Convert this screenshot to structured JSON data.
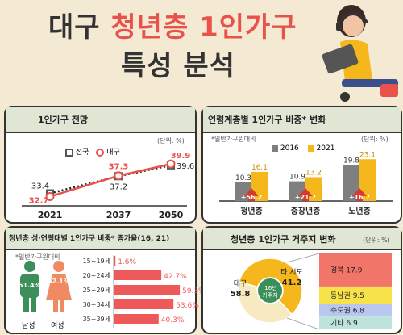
{
  "title": {
    "line1_a": "대구",
    "line1_b": "청년층 1인가구",
    "line2": "특성 분석"
  },
  "colors": {
    "accent": "#e8524a",
    "dark": "#333333",
    "gold": "#f5b71c",
    "gray": "#7f7f7f",
    "green": "#3c8f5a",
    "headBg": "#dfe6d3"
  },
  "panel1": {
    "title": "1인가구 전망",
    "unit": "(단위: %)",
    "legend": {
      "national": "전국",
      "daegu": "대구"
    }
  },
  "panel2": {
    "title": "연령계층별 1인가구 비중* 변화",
    "unit": "(단위: %)",
    "note": "*일반가구원대비",
    "legend": {
      "y2016": "2016",
      "y2021": "2021"
    }
  },
  "panel3": {
    "title": "청년층 성·연령대별 1인가구 비중* 증가율(16, 21)",
    "note": "*일반가구원대비",
    "gender": {
      "male_label": "남성",
      "male_value": "51.4%",
      "female_label": "여성",
      "female_value": "62.1%"
    }
  },
  "panel4": {
    "title": "청년층 1인가구 거주지 변화",
    "unit": "(단위: %)",
    "center_label": "'16년\n거주지",
    "slice_labels": [
      {
        "name": "대구",
        "value": "58.8"
      },
      {
        "name": "타 시도",
        "value": "41.2"
      }
    ],
    "breakdown": [
      {
        "name": "경북",
        "value": "17.9"
      },
      {
        "name": "동남권",
        "value": "9.5"
      },
      {
        "name": "수도권",
        "value": "6.8"
      },
      {
        "name": "기타",
        "value": "6.9"
      }
    ]
  },
  "chart_data": [
    {
      "type": "line",
      "title": "1인가구 전망",
      "x": [
        "2021",
        "2037",
        "2050"
      ],
      "series": [
        {
          "name": "전국",
          "values": [
            33.4,
            37.2,
            39.6
          ]
        },
        {
          "name": "대구",
          "values": [
            32.7,
            37.3,
            39.9
          ]
        }
      ],
      "ylim": [
        31,
        41
      ],
      "xlabel": "",
      "ylabel": ""
    },
    {
      "type": "bar",
      "title": "연령계층별 1인가구 비중* 변화",
      "categories": [
        "청년층",
        "중장년층",
        "노년층"
      ],
      "series": [
        {
          "name": "2016",
          "values": [
            10.3,
            10.9,
            19.8
          ]
        },
        {
          "name": "2021",
          "values": [
            16.1,
            13.2,
            23.1
          ]
        }
      ],
      "annotations": [
        "+56.2",
        "+21.7",
        "+16.7"
      ],
      "ylim": [
        0,
        25
      ]
    },
    {
      "type": "bar",
      "title": "청년층 성·연령대별 1인가구 비중* 증가율(16, 21)",
      "categories": [
        "15~19세",
        "20~24세",
        "25~29세",
        "30~34세",
        "35~39세"
      ],
      "values": [
        1.6,
        42.7,
        59.3,
        53.6,
        40.3
      ],
      "value_labels": [
        "1.6%",
        "42.7%",
        "59.3%",
        "53.6%",
        "40.3%"
      ],
      "orientation": "horizontal",
      "xlim": [
        0,
        65
      ]
    },
    {
      "type": "pie",
      "title": "청년층 1인가구 거주지 변화",
      "categories": [
        "대구",
        "타 시도"
      ],
      "values": [
        58.8,
        41.2
      ]
    },
    {
      "type": "bar",
      "title": "청년층 1인가구 거주지 변화",
      "categories": [
        "경북",
        "동남권",
        "수도권",
        "기타"
      ],
      "values": [
        17.9,
        9.5,
        6.8,
        6.9
      ],
      "orientation": "stacked"
    }
  ]
}
